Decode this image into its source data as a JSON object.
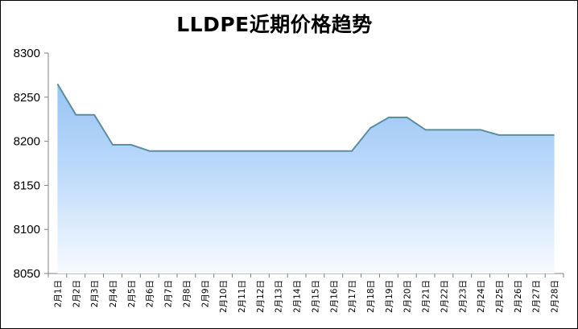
{
  "chart_data": {
    "type": "area",
    "title": "LLDPE近期价格趋势",
    "xlabel": "",
    "ylabel": "",
    "ylim": [
      8050,
      8300
    ],
    "yticks": [
      8050,
      8100,
      8150,
      8200,
      8250,
      8300
    ],
    "grid": false,
    "legend": "none",
    "categories": [
      "2月1日",
      "2月2日",
      "2月3日",
      "2月4日",
      "2月5日",
      "2月6日",
      "2月7日",
      "2月8日",
      "2月9日",
      "2月10日",
      "2月11日",
      "2月12日",
      "2月13日",
      "2月14日",
      "2月15日",
      "2月16日",
      "2月17日",
      "2月18日",
      "2月19日",
      "2月20日",
      "2月21日",
      "2月22日",
      "2月23日",
      "2月24日",
      "2月25日",
      "2月26日",
      "2月27日",
      "2月28日"
    ],
    "series": [
      {
        "values": [
          8265,
          8230,
          8230,
          8196,
          8196,
          8189,
          8189,
          8189,
          8189,
          8189,
          8189,
          8189,
          8189,
          8189,
          8189,
          8189,
          8189,
          8215,
          8227,
          8227,
          8213,
          8213,
          8213,
          8213,
          8207,
          8207,
          8207,
          8207
        ]
      }
    ],
    "colors": {
      "line": "#5b8fa0",
      "fill_top": "#97c4f5",
      "fill_bottom": "#f7fbff",
      "axis": "#808080"
    }
  }
}
